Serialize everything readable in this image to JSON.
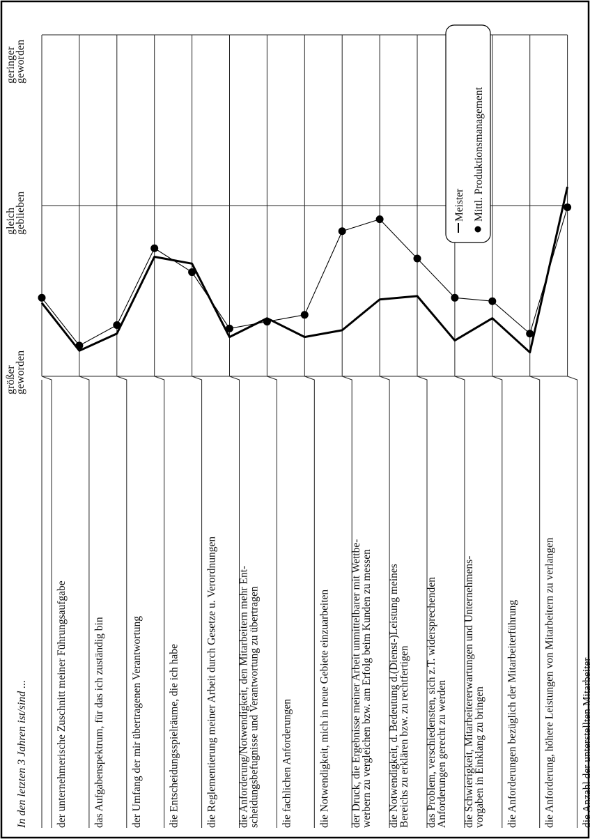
{
  "intro": "In den letzten 3 Jahren ist/sind ...",
  "chart_data": {
    "type": "line",
    "orientation": "rotated-90-counterclockwise",
    "scale_labels": [
      [
        "größer",
        "geworden"
      ],
      [
        "gleich",
        "geblieben"
      ],
      [
        "geringer",
        "geworden"
      ]
    ],
    "value_axis_range": [
      0,
      2
    ],
    "grid": true,
    "legend_position": "top-right",
    "categories": [
      [
        "der unternehmerische Zuschnitt meiner Führungsaufgabe"
      ],
      [
        "das Aufgabenspektrum, für das ich zuständig bin"
      ],
      [
        "der Umfang der mir übertragenen Verantwortung"
      ],
      [
        "die Entscheidungsspielräume, die ich habe"
      ],
      [
        "die Reglementierung meiner Arbeit durch Gesetze u. Verordnungen"
      ],
      [
        "die Anforderung/Notwendigkeit, den Mitarbeitern mehr Ent-",
        "scheidungsbefugnisse und Verantwortung zu übertragen"
      ],
      [
        "die fachlichen Anforderungen"
      ],
      [
        "die Notwendigkeit,  mich in neue Gebiete einzuarbeiten"
      ],
      [
        "der Druck, die Ergebnisse meiner Arbeit unmittelbarer mit Wettbe-",
        "werbern zu vergleichen bzw. am Erfolg beim Kunden zu messen"
      ],
      [
        "die Notwendigkeit,  d. Bedeutung d.(Dienst-)Leistung meines",
        "Bereichs zu erklären bzw. zu rechtfertigen"
      ],
      [
        "das Problem,  verschiedensten, sich z.T. widersprechenden",
        "Anforderungen gerecht zu werden"
      ],
      [
        "die Schwierigkeit,  Mitarbeitererwartungen und Unternehmens-",
        "vorgaben in Einklang zu bringen"
      ],
      [
        "die Anforderungen bezüglich der Mitarbeiterführung"
      ],
      [
        "die Anforderung,  höhere Leistungen von Mitarbeitern zu verlangen"
      ],
      [
        "die Anzahl der unterstellten Mitarbeiter"
      ]
    ],
    "series": [
      {
        "name": "Meister",
        "marker": "none",
        "values": [
          0.43,
          0.15,
          0.25,
          0.7,
          0.66,
          0.23,
          0.34,
          0.23,
          0.27,
          0.45,
          0.47,
          0.21,
          0.34,
          0.14,
          1.11
        ]
      },
      {
        "name": "Mittl. Produktionsmanagement",
        "marker": "dot",
        "values": [
          0.46,
          0.18,
          0.3,
          0.75,
          0.61,
          0.28,
          0.32,
          0.36,
          0.85,
          0.92,
          0.69,
          0.46,
          0.44,
          0.25,
          0.99
        ]
      }
    ]
  }
}
